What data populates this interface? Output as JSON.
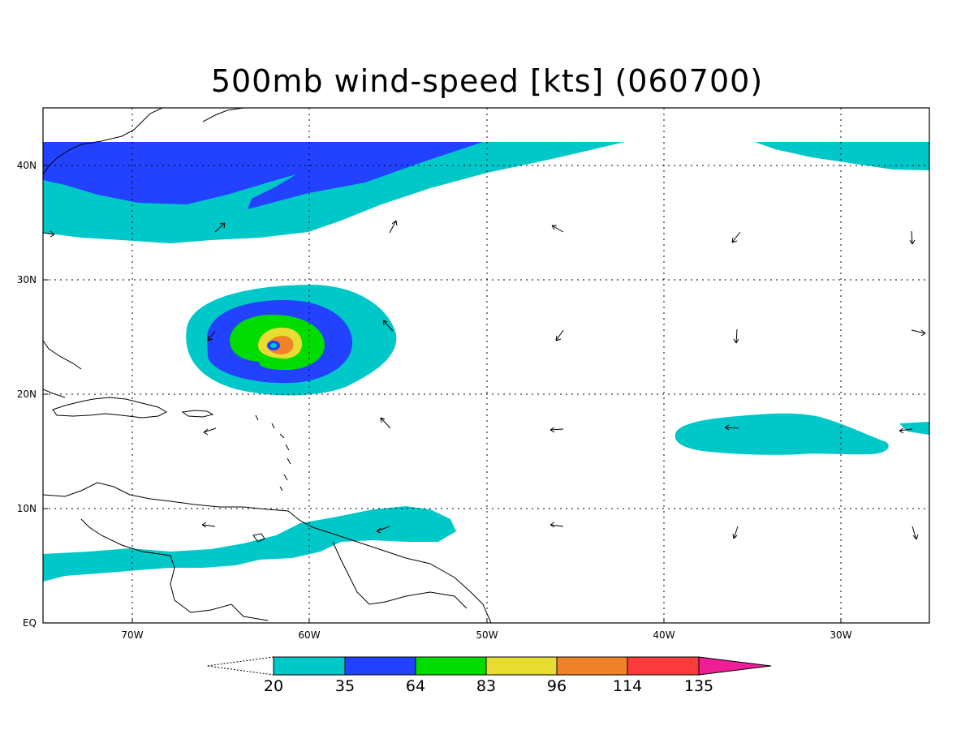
{
  "title": "500mb wind-speed [kts] (060700)",
  "map": {
    "lon_range": [
      -75,
      -25
    ],
    "lat_range": [
      0,
      45
    ],
    "lon_ticks": [
      {
        "lon": -70,
        "label": "70W"
      },
      {
        "lon": -60,
        "label": "60W"
      },
      {
        "lon": -50,
        "label": "50W"
      },
      {
        "lon": -40,
        "label": "40W"
      },
      {
        "lon": -30,
        "label": "30W"
      }
    ],
    "lat_ticks": [
      {
        "lat": 0,
        "label": "EQ"
      },
      {
        "lat": 10,
        "label": "10N"
      },
      {
        "lat": 20,
        "label": "20N"
      },
      {
        "lat": 30,
        "label": "30N"
      },
      {
        "lat": 40,
        "label": "40N"
      }
    ],
    "grid": "dotted"
  },
  "colorbar": {
    "levels": [
      "20",
      "35",
      "64",
      "83",
      "96",
      "114",
      "135"
    ],
    "colors": [
      "#00c8c8",
      "#2242ff",
      "#00dc00",
      "#e6dc32",
      "#f0822a",
      "#fa3c3c",
      "#f01e96"
    ]
  }
}
